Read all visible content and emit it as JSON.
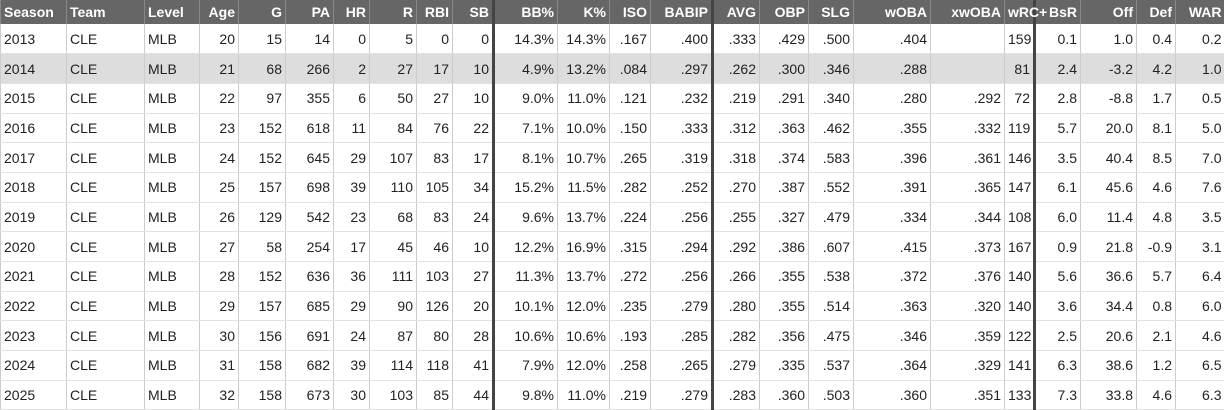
{
  "table": {
    "header": [
      "Season",
      "Team",
      "Level",
      "Age",
      "G",
      "PA",
      "HR",
      "R",
      "RBI",
      "SB",
      "BB%",
      "K%",
      "ISO",
      "BABIP",
      "AVG",
      "OBP",
      "SLG",
      "wOBA",
      "xwOBA",
      "wRC+",
      "BsR",
      "Off",
      "Def",
      "WAR"
    ],
    "rows": [
      [
        "2013",
        "CLE",
        "MLB",
        "20",
        "15",
        "14",
        "0",
        "5",
        "0",
        "0",
        "14.3%",
        "14.3%",
        ".167",
        ".400",
        ".333",
        ".429",
        ".500",
        ".404",
        null,
        "159",
        "0.1",
        "1.0",
        "0.4",
        "0.2"
      ],
      [
        "2014",
        "CLE",
        "MLB",
        "21",
        "68",
        "266",
        "2",
        "27",
        "17",
        "10",
        "4.9%",
        "13.2%",
        ".084",
        ".297",
        ".262",
        ".300",
        ".346",
        ".288",
        null,
        "81",
        "2.4",
        "-3.2",
        "4.2",
        "1.0"
      ],
      [
        "2015",
        "CLE",
        "MLB",
        "22",
        "97",
        "355",
        "6",
        "50",
        "27",
        "10",
        "9.0%",
        "11.0%",
        ".121",
        ".232",
        ".219",
        ".291",
        ".340",
        ".280",
        ".292",
        "72",
        "2.8",
        "-8.8",
        "1.7",
        "0.5"
      ],
      [
        "2016",
        "CLE",
        "MLB",
        "23",
        "152",
        "618",
        "11",
        "84",
        "76",
        "22",
        "7.1%",
        "10.0%",
        ".150",
        ".333",
        ".312",
        ".363",
        ".462",
        ".355",
        ".332",
        "119",
        "5.7",
        "20.0",
        "8.1",
        "5.0"
      ],
      [
        "2017",
        "CLE",
        "MLB",
        "24",
        "152",
        "645",
        "29",
        "107",
        "83",
        "17",
        "8.1%",
        "10.7%",
        ".265",
        ".319",
        ".318",
        ".374",
        ".583",
        ".396",
        ".361",
        "146",
        "3.5",
        "40.4",
        "8.5",
        "7.0"
      ],
      [
        "2018",
        "CLE",
        "MLB",
        "25",
        "157",
        "698",
        "39",
        "110",
        "105",
        "34",
        "15.2%",
        "11.5%",
        ".282",
        ".252",
        ".270",
        ".387",
        ".552",
        ".391",
        ".365",
        "147",
        "6.1",
        "45.6",
        "4.6",
        "7.6"
      ],
      [
        "2019",
        "CLE",
        "MLB",
        "26",
        "129",
        "542",
        "23",
        "68",
        "83",
        "24",
        "9.6%",
        "13.7%",
        ".224",
        ".256",
        ".255",
        ".327",
        ".479",
        ".334",
        ".344",
        "108",
        "6.0",
        "11.4",
        "4.8",
        "3.5"
      ],
      [
        "2020",
        "CLE",
        "MLB",
        "27",
        "58",
        "254",
        "17",
        "45",
        "46",
        "10",
        "12.2%",
        "16.9%",
        ".315",
        ".294",
        ".292",
        ".386",
        ".607",
        ".415",
        ".373",
        "167",
        "0.9",
        "21.8",
        "-0.9",
        "3.1"
      ],
      [
        "2021",
        "CLE",
        "MLB",
        "28",
        "152",
        "636",
        "36",
        "111",
        "103",
        "27",
        "11.3%",
        "13.7%",
        ".272",
        ".256",
        ".266",
        ".355",
        ".538",
        ".372",
        ".376",
        "140",
        "5.6",
        "36.6",
        "5.7",
        "6.4"
      ],
      [
        "2022",
        "CLE",
        "MLB",
        "29",
        "157",
        "685",
        "29",
        "90",
        "126",
        "20",
        "10.1%",
        "12.0%",
        ".235",
        ".279",
        ".280",
        ".355",
        ".514",
        ".363",
        ".320",
        "140",
        "3.6",
        "34.4",
        "0.8",
        "6.0"
      ],
      [
        "2023",
        "CLE",
        "MLB",
        "30",
        "156",
        "691",
        "24",
        "87",
        "80",
        "28",
        "10.6%",
        "10.6%",
        ".193",
        ".285",
        ".282",
        ".356",
        ".475",
        ".346",
        ".359",
        "122",
        "2.5",
        "20.6",
        "2.1",
        "4.6"
      ],
      [
        "2024",
        "CLE",
        "MLB",
        "31",
        "158",
        "682",
        "39",
        "114",
        "118",
        "41",
        "7.9%",
        "12.0%",
        ".258",
        ".265",
        ".279",
        ".335",
        ".537",
        ".364",
        ".329",
        "141",
        "6.3",
        "38.6",
        "1.2",
        "6.5"
      ],
      [
        "2025",
        "CLE",
        "MLB",
        "32",
        "158",
        "673",
        "30",
        "103",
        "85",
        "44",
        "9.8%",
        "11.0%",
        ".219",
        ".279",
        ".283",
        ".360",
        ".503",
        ".360",
        ".351",
        "133",
        "7.3",
        "33.8",
        "4.6",
        "6.3"
      ]
    ]
  }
}
